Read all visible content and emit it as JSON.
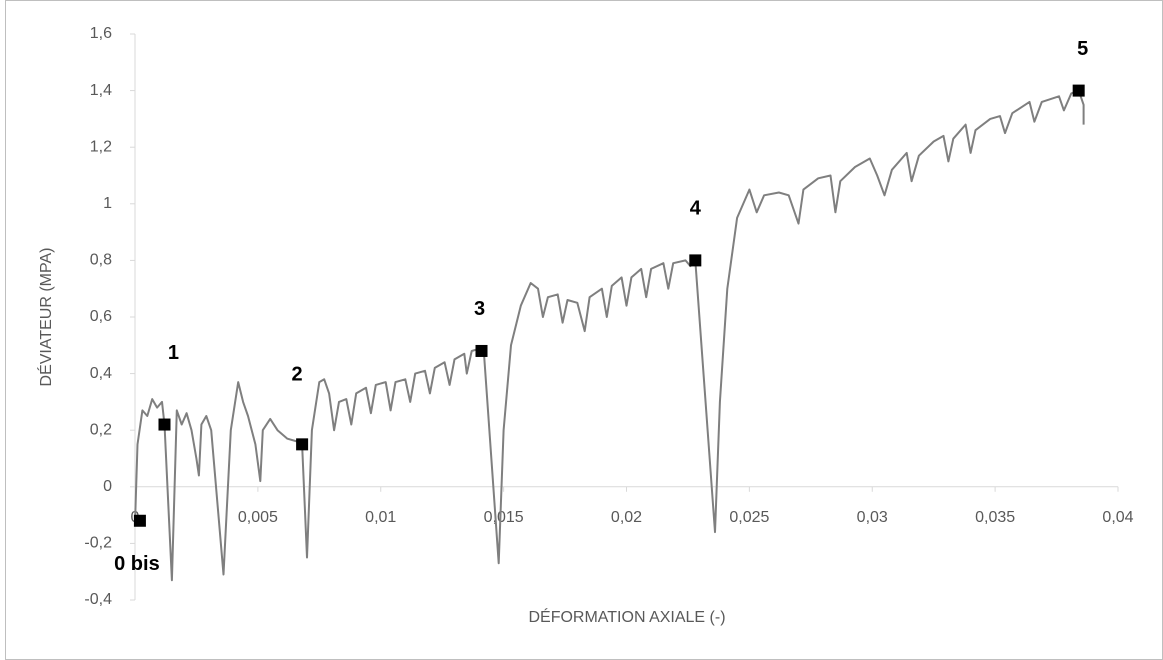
{
  "chart_data": {
    "type": "line",
    "x_label": "DÉFORMATION AXIALE (-)",
    "y_label": "DÉVIATEUR (MPA)",
    "xlim": [
      0,
      0.04
    ],
    "ylim": [
      -0.4,
      1.6
    ],
    "xticks": [
      0,
      {
        "value": 0.005,
        "label": "0,005"
      },
      {
        "value": 0.01,
        "label": "0,01"
      },
      {
        "value": 0.015,
        "label": "0,015"
      },
      {
        "value": 0.02,
        "label": "0,02"
      },
      {
        "value": 0.025,
        "label": "0,025"
      },
      {
        "value": 0.03,
        "label": "0,03"
      },
      {
        "value": 0.035,
        "label": "0,035"
      },
      {
        "value": 0.04,
        "label": "0,04"
      }
    ],
    "yticks": [
      {
        "value": -0.4,
        "label": "-0,4"
      },
      {
        "value": -0.2,
        "label": "-0,2"
      },
      0,
      {
        "value": 0.2,
        "label": "0,2"
      },
      {
        "value": 0.4,
        "label": "0,4"
      },
      {
        "value": 0.6,
        "label": "0,6"
      },
      {
        "value": 0.8,
        "label": "0,8"
      },
      1,
      {
        "value": 1.2,
        "label": "1,2"
      },
      {
        "value": 1.4,
        "label": "1,4"
      },
      {
        "value": 1.6,
        "label": "1,6"
      }
    ],
    "grid": false,
    "series": [
      {
        "style": "line",
        "color": "#7f7f7f",
        "x": [
          0,
          0.0001,
          0.0003,
          0.0005,
          0.0007,
          0.0009,
          0.0011,
          0.0012,
          0.0015,
          0.0017,
          0.0019,
          0.0021,
          0.0023,
          0.0025,
          0.0026,
          0.0027,
          0.0029,
          0.0031,
          0.0036,
          0.0039,
          0.0042,
          0.0044,
          0.0046,
          0.0049,
          0.0051,
          0.0052,
          0.0055,
          0.0058,
          0.0062,
          0.0066,
          0.0068,
          0.007,
          0.0072,
          0.0075,
          0.0077,
          0.0079,
          0.0081,
          0.0083,
          0.0086,
          0.0088,
          0.009,
          0.0094,
          0.0096,
          0.0098,
          0.0102,
          0.0104,
          0.0106,
          0.011,
          0.0112,
          0.0114,
          0.0118,
          0.012,
          0.0122,
          0.0126,
          0.0128,
          0.013,
          0.0134,
          0.0135,
          0.0137,
          0.0141,
          0.0142,
          0.0148,
          0.015,
          0.0153,
          0.0157,
          0.0161,
          0.0164,
          0.0166,
          0.0168,
          0.0172,
          0.0174,
          0.0176,
          0.018,
          0.0183,
          0.0185,
          0.019,
          0.0192,
          0.0194,
          0.0198,
          0.02,
          0.0202,
          0.0206,
          0.0208,
          0.021,
          0.0215,
          0.0217,
          0.0219,
          0.0224,
          0.0226,
          0.0228,
          0.0236,
          0.0238,
          0.0241,
          0.0245,
          0.025,
          0.0253,
          0.0256,
          0.0262,
          0.0266,
          0.027,
          0.0272,
          0.0278,
          0.0283,
          0.0285,
          0.0287,
          0.0293,
          0.0299,
          0.0302,
          0.0305,
          0.0308,
          0.0314,
          0.0316,
          0.0319,
          0.0325,
          0.0329,
          0.0331,
          0.0333,
          0.0338,
          0.034,
          0.0342,
          0.0348,
          0.0352,
          0.0354,
          0.0357,
          0.0364,
          0.0366,
          0.0369,
          0.0376,
          0.0378,
          0.0381,
          0.0384,
          0.0386,
          0.0386
        ],
        "values": [
          -0.13,
          0.15,
          0.27,
          0.25,
          0.31,
          0.28,
          0.3,
          0.22,
          -0.33,
          0.27,
          0.22,
          0.26,
          0.2,
          0.1,
          0.04,
          0.22,
          0.25,
          0.2,
          -0.31,
          0.2,
          0.37,
          0.3,
          0.25,
          0.15,
          0.02,
          0.2,
          0.24,
          0.2,
          0.17,
          0.16,
          0.15,
          -0.25,
          0.2,
          0.37,
          0.38,
          0.33,
          0.2,
          0.3,
          0.31,
          0.22,
          0.33,
          0.35,
          0.26,
          0.36,
          0.37,
          0.27,
          0.37,
          0.38,
          0.3,
          0.4,
          0.41,
          0.33,
          0.42,
          0.44,
          0.36,
          0.45,
          0.47,
          0.4,
          0.48,
          0.49,
          0.47,
          -0.27,
          0.2,
          0.5,
          0.64,
          0.72,
          0.7,
          0.6,
          0.67,
          0.68,
          0.58,
          0.66,
          0.65,
          0.55,
          0.67,
          0.7,
          0.6,
          0.71,
          0.74,
          0.64,
          0.74,
          0.77,
          0.67,
          0.77,
          0.79,
          0.7,
          0.79,
          0.8,
          0.78,
          0.8,
          -0.16,
          0.3,
          0.7,
          0.95,
          1.05,
          0.97,
          1.03,
          1.04,
          1.03,
          0.93,
          1.05,
          1.09,
          1.1,
          0.97,
          1.08,
          1.13,
          1.16,
          1.1,
          1.03,
          1.12,
          1.18,
          1.08,
          1.17,
          1.22,
          1.24,
          1.15,
          1.23,
          1.28,
          1.18,
          1.26,
          1.3,
          1.31,
          1.25,
          1.32,
          1.36,
          1.29,
          1.36,
          1.38,
          1.33,
          1.39,
          1.4,
          1.35,
          1.28
        ]
      },
      {
        "style": "markers",
        "color": "#000000",
        "x": [
          0.0002,
          0.0012,
          0.0068,
          0.0141,
          0.0228,
          0.0384
        ],
        "values": [
          -0.12,
          0.22,
          0.15,
          0.48,
          0.8,
          1.4
        ],
        "labels": [
          "0 bis",
          "1",
          "2",
          "3",
          "4",
          "5"
        ]
      }
    ]
  }
}
